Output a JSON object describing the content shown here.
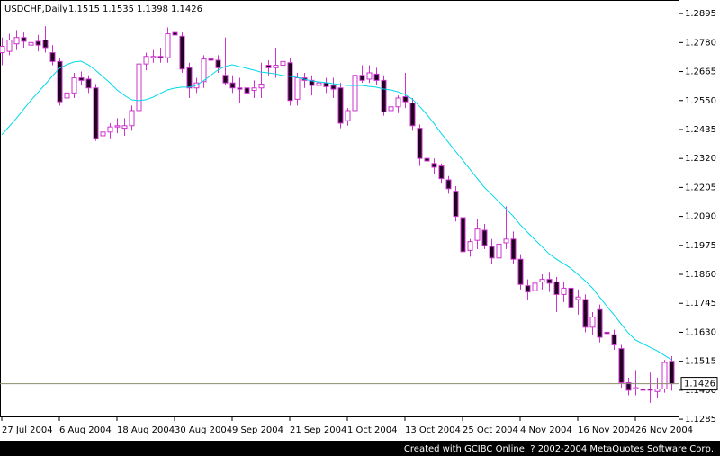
{
  "chart_data": {
    "type": "candlestick",
    "symbol": "USDCHF,Daily",
    "footer": "Created with GCIBC Online, ? 2002-2004 MetaQuotes Software Corp.",
    "categories": [
      "27 Jul 2004",
      null,
      null,
      null,
      null,
      null,
      null,
      null,
      "6 Aug 2004",
      null,
      null,
      null,
      null,
      null,
      null,
      null,
      "18 Aug 2004",
      null,
      null,
      null,
      null,
      null,
      null,
      null,
      "30 Aug 2004",
      null,
      null,
      null,
      null,
      null,
      null,
      null,
      "9 Sep 2004",
      null,
      null,
      null,
      null,
      null,
      null,
      null,
      "21 Sep 2004",
      null,
      null,
      null,
      null,
      null,
      null,
      null,
      "1 Oct 2004",
      null,
      null,
      null,
      null,
      null,
      null,
      null,
      "13 Oct 2004",
      null,
      null,
      null,
      null,
      null,
      null,
      null,
      "25 Oct 2004",
      null,
      null,
      null,
      null,
      null,
      null,
      null,
      "4 Nov 2004",
      null,
      null,
      null,
      null,
      null,
      null,
      null,
      "16 Nov 2004",
      null,
      null,
      null,
      null,
      null,
      null,
      null,
      "26 Nov 2004",
      null,
      null,
      null,
      null,
      null
    ],
    "ohlc": [
      [
        1.274,
        1.28,
        1.269,
        1.2765
      ],
      [
        1.2745,
        1.2815,
        1.273,
        1.279
      ],
      [
        1.2775,
        1.283,
        1.275,
        1.28
      ],
      [
        1.28,
        1.282,
        1.276,
        1.2785
      ],
      [
        1.277,
        1.28,
        1.272,
        1.278
      ],
      [
        1.2785,
        1.281,
        1.2745,
        1.277
      ],
      [
        1.279,
        1.2845,
        1.274,
        1.276
      ],
      [
        1.274,
        1.277,
        1.269,
        1.2705
      ],
      [
        1.2705,
        1.272,
        1.253,
        1.2545
      ],
      [
        1.256,
        1.26,
        1.254,
        1.258
      ],
      [
        1.258,
        1.266,
        1.256,
        1.264
      ],
      [
        1.264,
        1.2665,
        1.261,
        1.263
      ],
      [
        1.2635,
        1.265,
        1.258,
        1.26
      ],
      [
        1.26,
        1.2615,
        1.239,
        1.24
      ],
      [
        1.241,
        1.2445,
        1.2385,
        1.2425
      ],
      [
        1.2425,
        1.246,
        1.24,
        1.2445
      ],
      [
        1.2445,
        1.248,
        1.242,
        1.245
      ],
      [
        1.244,
        1.248,
        1.241,
        1.245
      ],
      [
        1.245,
        1.253,
        1.243,
        1.251
      ],
      [
        1.251,
        1.271,
        1.25,
        1.2695
      ],
      [
        1.2695,
        1.274,
        1.267,
        1.2725
      ],
      [
        1.272,
        1.275,
        1.27,
        1.2725
      ],
      [
        1.2725,
        1.276,
        1.27,
        1.272
      ],
      [
        1.272,
        1.284,
        1.27,
        1.2815
      ],
      [
        1.282,
        1.2835,
        1.279,
        1.281
      ],
      [
        1.2805,
        1.282,
        1.266,
        1.2675
      ],
      [
        1.268,
        1.27,
        1.256,
        1.26
      ],
      [
        1.26,
        1.264,
        1.258,
        1.262
      ],
      [
        1.2625,
        1.273,
        1.26,
        1.2715
      ],
      [
        1.2715,
        1.274,
        1.269,
        1.271
      ],
      [
        1.271,
        1.273,
        1.266,
        1.268
      ],
      [
        1.265,
        1.28,
        1.261,
        1.262
      ],
      [
        1.262,
        1.265,
        1.258,
        1.26
      ],
      [
        1.26,
        1.264,
        1.254,
        1.2595
      ],
      [
        1.26,
        1.263,
        1.256,
        1.258
      ],
      [
        1.259,
        1.263,
        1.256,
        1.26
      ],
      [
        1.26,
        1.27,
        1.256,
        1.2615
      ],
      [
        1.269,
        1.271,
        1.265,
        1.268
      ],
      [
        1.268,
        1.276,
        1.264,
        1.269
      ],
      [
        1.269,
        1.279,
        1.266,
        1.2705
      ],
      [
        1.27,
        1.272,
        1.253,
        1.255
      ],
      [
        1.2555,
        1.266,
        1.253,
        1.264
      ],
      [
        1.264,
        1.266,
        1.26,
        1.263
      ],
      [
        1.263,
        1.265,
        1.257,
        1.261
      ],
      [
        1.261,
        1.264,
        1.256,
        1.262
      ],
      [
        1.262,
        1.264,
        1.258,
        1.2605
      ],
      [
        1.261,
        1.264,
        1.256,
        1.2595
      ],
      [
        1.26,
        1.262,
        1.244,
        1.246
      ],
      [
        1.247,
        1.252,
        1.245,
        1.251
      ],
      [
        1.251,
        1.268,
        1.25,
        1.265
      ],
      [
        1.265,
        1.269,
        1.262,
        1.263
      ],
      [
        1.2635,
        1.269,
        1.262,
        1.266
      ],
      [
        1.2655,
        1.268,
        1.261,
        1.263
      ],
      [
        1.263,
        1.265,
        1.249,
        1.2505
      ],
      [
        1.251,
        1.256,
        1.248,
        1.2525
      ],
      [
        1.2525,
        1.257,
        1.25,
        1.256
      ],
      [
        1.2565,
        1.266,
        1.252,
        1.2545
      ],
      [
        1.254,
        1.256,
        1.243,
        1.245
      ],
      [
        1.244,
        1.2455,
        1.229,
        1.232
      ],
      [
        1.232,
        1.235,
        1.229,
        1.231
      ],
      [
        1.23,
        1.232,
        1.226,
        1.2285
      ],
      [
        1.229,
        1.23,
        1.222,
        1.224
      ],
      [
        1.2235,
        1.225,
        1.218,
        1.22
      ],
      [
        1.219,
        1.221,
        1.207,
        1.209
      ],
      [
        1.2085,
        1.21,
        1.192,
        1.195
      ],
      [
        1.1955,
        1.2,
        1.193,
        1.199
      ],
      [
        1.1995,
        1.208,
        1.196,
        1.204
      ],
      [
        1.2035,
        1.206,
        1.196,
        1.1975
      ],
      [
        1.197,
        1.2,
        1.19,
        1.1925
      ],
      [
        1.1925,
        1.206,
        1.191,
        1.198
      ],
      [
        1.1985,
        1.213,
        1.196,
        1.2
      ],
      [
        1.2,
        1.203,
        1.19,
        1.192
      ],
      [
        1.192,
        1.194,
        1.18,
        1.182
      ],
      [
        1.1815,
        1.184,
        1.176,
        1.179
      ],
      [
        1.1795,
        1.185,
        1.176,
        1.1825
      ],
      [
        1.183,
        1.186,
        1.18,
        1.184
      ],
      [
        1.184,
        1.187,
        1.179,
        1.1825
      ],
      [
        1.183,
        1.185,
        1.171,
        1.178
      ],
      [
        1.178,
        1.183,
        1.175,
        1.1805
      ],
      [
        1.1805,
        1.183,
        1.171,
        1.173
      ],
      [
        1.176,
        1.18,
        1.17,
        1.177
      ],
      [
        1.176,
        1.178,
        1.163,
        1.165
      ],
      [
        1.165,
        1.171,
        1.162,
        1.169
      ],
      [
        1.172,
        1.174,
        1.159,
        1.161
      ],
      [
        1.163,
        1.166,
        1.158,
        1.1625
      ],
      [
        1.162,
        1.164,
        1.156,
        1.158
      ],
      [
        1.1565,
        1.158,
        1.141,
        1.143
      ],
      [
        1.143,
        1.145,
        1.138,
        1.14
      ],
      [
        1.1405,
        1.148,
        1.138,
        1.141
      ],
      [
        1.1405,
        1.144,
        1.137,
        1.14
      ],
      [
        1.1405,
        1.147,
        1.135,
        1.14
      ],
      [
        1.1395,
        1.145,
        1.137,
        1.1405
      ],
      [
        1.1405,
        1.152,
        1.139,
        1.151
      ],
      [
        1.1515,
        1.1535,
        1.1398,
        1.1426
      ]
    ],
    "line": {
      "color": "#00d8e8",
      "values": [
        1.2414,
        1.2446,
        1.2478,
        1.2514,
        1.2549,
        1.2581,
        1.2613,
        1.2646,
        1.2678,
        1.2692,
        1.2703,
        1.2706,
        1.2692,
        1.2671,
        1.2646,
        1.2621,
        1.2592,
        1.2571,
        1.2553,
        1.2549,
        1.2553,
        1.2563,
        1.2578,
        1.2592,
        1.2599,
        1.2603,
        1.2603,
        1.261,
        1.2628,
        1.2649,
        1.2671,
        1.2685,
        1.2692,
        1.2685,
        1.2678,
        1.2671,
        1.2663,
        1.266,
        1.2656,
        1.2649,
        1.2646,
        1.2642,
        1.2635,
        1.2628,
        1.2624,
        1.2621,
        1.2617,
        1.2613,
        1.261,
        1.261,
        1.261,
        1.2606,
        1.2603,
        1.2596,
        1.2592,
        1.2585,
        1.2574,
        1.2556,
        1.2528,
        1.2496,
        1.246,
        1.2421,
        1.2385,
        1.2349,
        1.2314,
        1.2278,
        1.2242,
        1.2206,
        1.2178,
        1.2149,
        1.2121,
        1.2092,
        1.2057,
        1.2028,
        1.1999,
        1.1971,
        1.1942,
        1.1921,
        1.1903,
        1.1885,
        1.186,
        1.1835,
        1.1807,
        1.1771,
        1.1735,
        1.17,
        1.1664,
        1.1628,
        1.16,
        1.1585,
        1.1571,
        1.1557,
        1.1539,
        1.1521
      ]
    },
    "bull_color": "#ffffff",
    "bear_color": "#200020",
    "wick_color": "#cc33cc",
    "price_line_color": "#8c8c6c",
    "ylim": [
      1.1296,
      1.2949
    ],
    "yticks": [
      1.2895,
      {
        "value": 1.278,
        "label": "1.2780"
      },
      1.2665,
      {
        "value": 1.255,
        "label": "1.2550"
      },
      1.2435,
      {
        "value": 1.232,
        "label": "1.2320"
      },
      1.2205,
      {
        "value": 1.209,
        "label": "1.2090"
      },
      1.1975,
      {
        "value": 1.186,
        "label": "1.1860"
      },
      1.1745,
      {
        "value": 1.163,
        "label": "1.1630"
      },
      1.1515,
      {
        "value": 1.14,
        "label": "1.1400"
      },
      1.1285
    ]
  }
}
